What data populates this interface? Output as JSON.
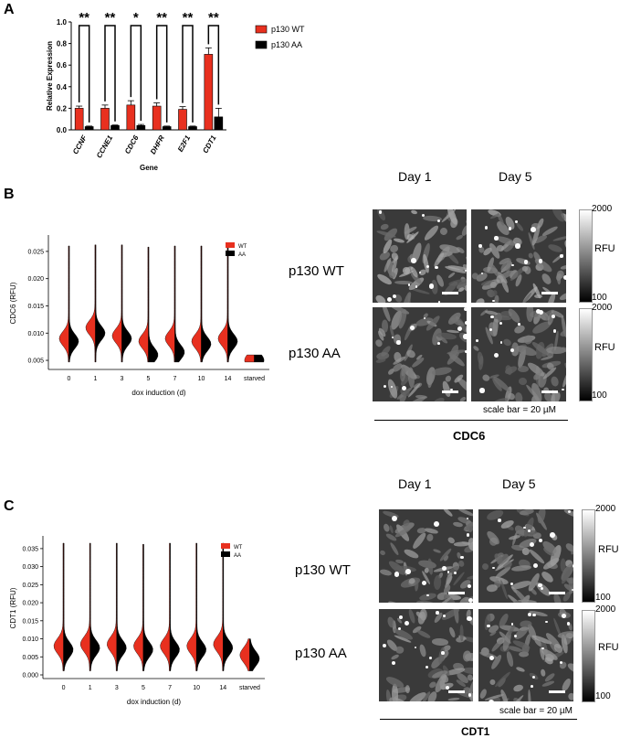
{
  "panels": {
    "a": "A",
    "b": "B",
    "c": "C"
  },
  "chart_data": [
    {
      "type": "bar",
      "panel": "A",
      "categories": [
        "CCNF",
        "CCNE1",
        "CDC6",
        "DHFR",
        "E2F1",
        "CDT1"
      ],
      "series": [
        {
          "name": "p130 WT",
          "values": [
            0.2,
            0.2,
            0.23,
            0.22,
            0.19,
            0.7
          ],
          "errors": [
            0.02,
            0.03,
            0.04,
            0.03,
            0.025,
            0.06
          ]
        },
        {
          "name": "p130 AA",
          "values": [
            0.03,
            0.04,
            0.04,
            0.03,
            0.03,
            0.12
          ],
          "errors": [
            0.005,
            0.005,
            0.01,
            0.005,
            0.005,
            0.08
          ]
        }
      ],
      "significance": [
        "**",
        "**",
        "*",
        "**",
        "**",
        "**"
      ],
      "ylabel": "Relative Expression",
      "xlabel": "Gene",
      "ylim": [
        0,
        1.0
      ],
      "yticks": [
        "0.0",
        "0.2",
        "0.4",
        "0.6",
        "0.8",
        "1.0"
      ],
      "colors": {
        "p130 WT": "#e8301f",
        "p130 AA": "#000000"
      }
    },
    {
      "type": "violin",
      "panel": "B",
      "categories": [
        "0",
        "1",
        "3",
        "5",
        "7",
        "10",
        "14",
        "starved"
      ],
      "series": [
        {
          "name": "WT"
        },
        {
          "name": "AA"
        }
      ],
      "medians_wt": [
        0.009,
        0.011,
        0.0095,
        0.0085,
        0.009,
        0.0085,
        0.009,
        0.005
      ],
      "medians_aa": [
        0.0085,
        0.01,
        0.009,
        0.006,
        0.0065,
        0.008,
        0.0085,
        0.005
      ],
      "maxima": [
        0.026,
        0.0262,
        0.0262,
        0.0258,
        0.026,
        0.026,
        0.0262,
        0.006
      ],
      "ylabel": "CDC6 (RFU)",
      "xlabel": "dox induction (d)",
      "ylim": [
        0.004,
        0.027
      ],
      "yticks": [
        "0.005",
        "0.010",
        "0.015",
        "0.020",
        "0.025"
      ],
      "legend_position": "top-right"
    },
    {
      "type": "violin",
      "panel": "C",
      "categories": [
        "0",
        "1",
        "3",
        "5",
        "7",
        "10",
        "14",
        "starved"
      ],
      "series": [
        {
          "name": "WT"
        },
        {
          "name": "AA"
        }
      ],
      "medians_wt": [
        0.008,
        0.0085,
        0.0085,
        0.008,
        0.008,
        0.008,
        0.0085,
        0.0055
      ],
      "medians_aa": [
        0.007,
        0.0075,
        0.0075,
        0.007,
        0.007,
        0.007,
        0.0075,
        0.0045
      ],
      "maxima": [
        0.0365,
        0.0365,
        0.0365,
        0.0362,
        0.0365,
        0.0365,
        0.0365,
        0.01
      ],
      "ylabel": "CDT1 (RFU)",
      "xlabel": "dox induction (d)",
      "ylim": [
        0.0,
        0.037
      ],
      "yticks": [
        "0.000",
        "0.005",
        "0.010",
        "0.015",
        "0.020",
        "0.025",
        "0.030",
        "0.035"
      ],
      "legend_position": "top-right"
    }
  ],
  "micrographs": {
    "b": {
      "day1": "Day 1",
      "day5": "Day 5",
      "row1": "p130 WT",
      "row2": "p130 AA",
      "rfu": "RFU",
      "max": "2000",
      "min": "100",
      "scale": "scale bar = 20 µM",
      "title": "CDC6"
    },
    "c": {
      "day1": "Day 1",
      "day5": "Day 5",
      "row1": "p130 WT",
      "row2": "p130 AA",
      "rfu": "RFU",
      "max": "2000",
      "min": "100",
      "scale": "scale bar = 20 µM",
      "title": "CDT1"
    }
  },
  "colors": {
    "wt": "#e8301f",
    "aa": "#000000"
  }
}
